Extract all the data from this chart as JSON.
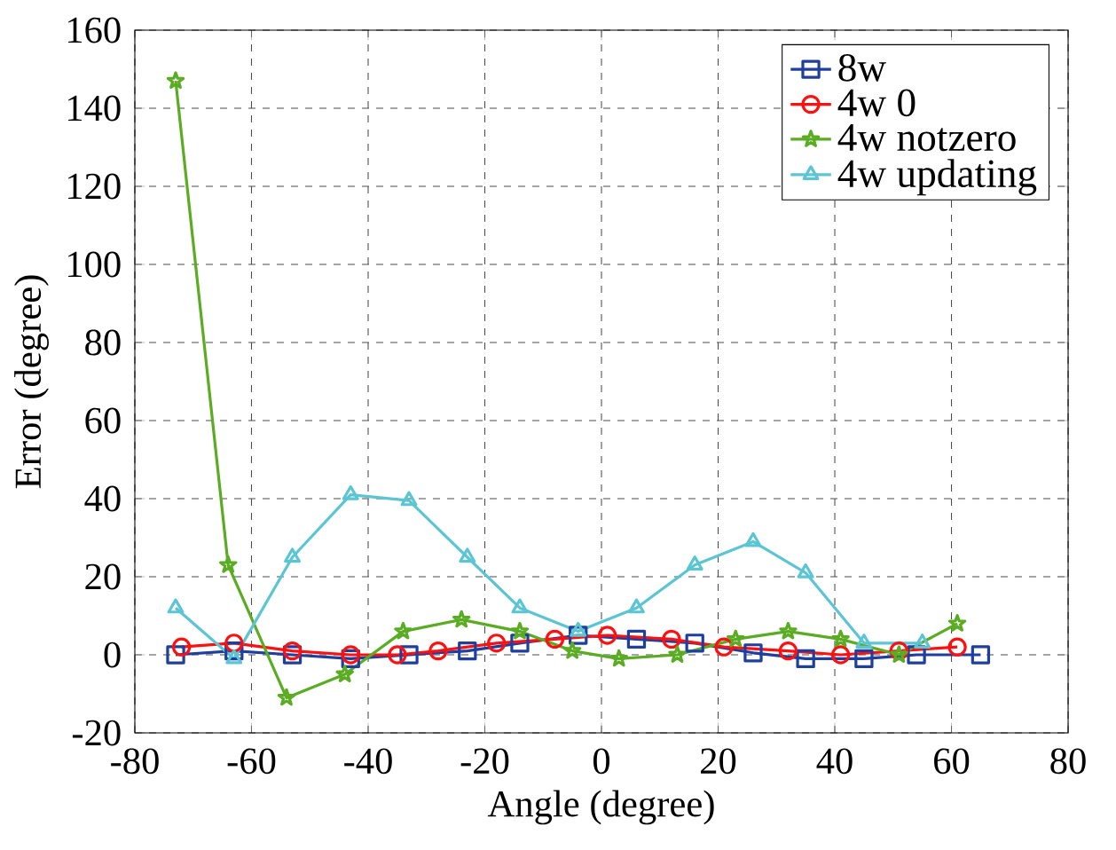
{
  "chart_data": {
    "type": "line",
    "xlabel": "Angle (degree)",
    "ylabel": "Error (degree)",
    "xlim": [
      -80,
      80
    ],
    "ylim": [
      -20,
      160
    ],
    "xticks": [
      -80,
      -60,
      -40,
      -20,
      0,
      20,
      40,
      60,
      80
    ],
    "yticks": [
      -20,
      0,
      20,
      40,
      60,
      80,
      100,
      120,
      140,
      160
    ],
    "grid": true,
    "legend": "top right",
    "line_style": "solid",
    "series": [
      {
        "name": "8w",
        "color": "#1f3f9f",
        "marker": "square",
        "x": [
          -73,
          -63,
          -53,
          -43,
          -33,
          -23,
          -14,
          -4,
          6,
          16,
          26,
          35,
          45,
          54,
          65
        ],
        "values": [
          0,
          1,
          0,
          -1,
          0,
          1,
          3,
          5,
          4,
          3,
          0.5,
          -1,
          -1,
          0,
          0
        ]
      },
      {
        "name": "4w 0",
        "color": "#ff1010",
        "marker": "circle",
        "x": [
          -72,
          -63,
          -53,
          -43,
          -35,
          -28,
          -18,
          -8,
          1,
          12,
          21,
          32,
          41,
          51,
          61
        ],
        "values": [
          2,
          3,
          1,
          0,
          0,
          1,
          3,
          4,
          5,
          4,
          2,
          1,
          0,
          1,
          2
        ]
      },
      {
        "name": "4w notzero",
        "color": "#5aac23",
        "marker": "star",
        "x": [
          -73,
          -64,
          -54,
          -44,
          -34,
          -24,
          -14,
          -5,
          3,
          13,
          23,
          32,
          41,
          51,
          61
        ],
        "values": [
          147,
          23,
          -11,
          -5,
          6,
          9,
          6,
          1,
          -1,
          0,
          4,
          6,
          4,
          0,
          8
        ]
      },
      {
        "name": "4w updating",
        "color": "#5bc5d3",
        "marker": "triangle",
        "x": [
          -73,
          -63,
          -53,
          -43,
          -33,
          -23,
          -14,
          -4,
          6,
          16,
          26,
          35,
          45,
          55
        ],
        "values": [
          12,
          -1,
          25,
          41,
          39.5,
          25,
          12,
          6,
          12,
          23,
          29,
          21,
          3,
          3
        ]
      }
    ]
  }
}
